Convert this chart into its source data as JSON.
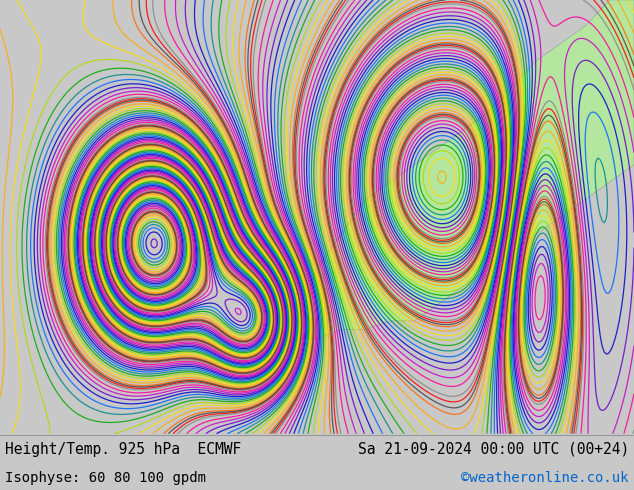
{
  "title_left": "Height/Temp. 925 hPa  ECMWF",
  "title_right": "Sa 21-09-2024 00:00 UTC (00+24)",
  "subtitle_left": "Isophyse: 60 80 100 gpdm",
  "subtitle_right": "©weatheronline.co.uk",
  "subtitle_right_color": "#0066cc",
  "bg_color": "#c8c8c8",
  "land_color": "#b4e6a0",
  "sea_color": "#f5f5f5",
  "border_color": "#888888",
  "text_color": "#000000",
  "font_size_title": 10.5,
  "font_size_subtitle": 10,
  "fig_width": 6.34,
  "fig_height": 4.9,
  "dpi": 100,
  "map_extent": [
    -70,
    60,
    25,
    75
  ],
  "contour_colors": [
    "#ff0000",
    "#ff6600",
    "#ffaa00",
    "#ffdd00",
    "#aadd00",
    "#00aa00",
    "#008888",
    "#0066ff",
    "#0000cc",
    "#6600cc",
    "#cc00cc",
    "#ff0099",
    "#888888",
    "#444444"
  ],
  "contour_lw": 0.9
}
